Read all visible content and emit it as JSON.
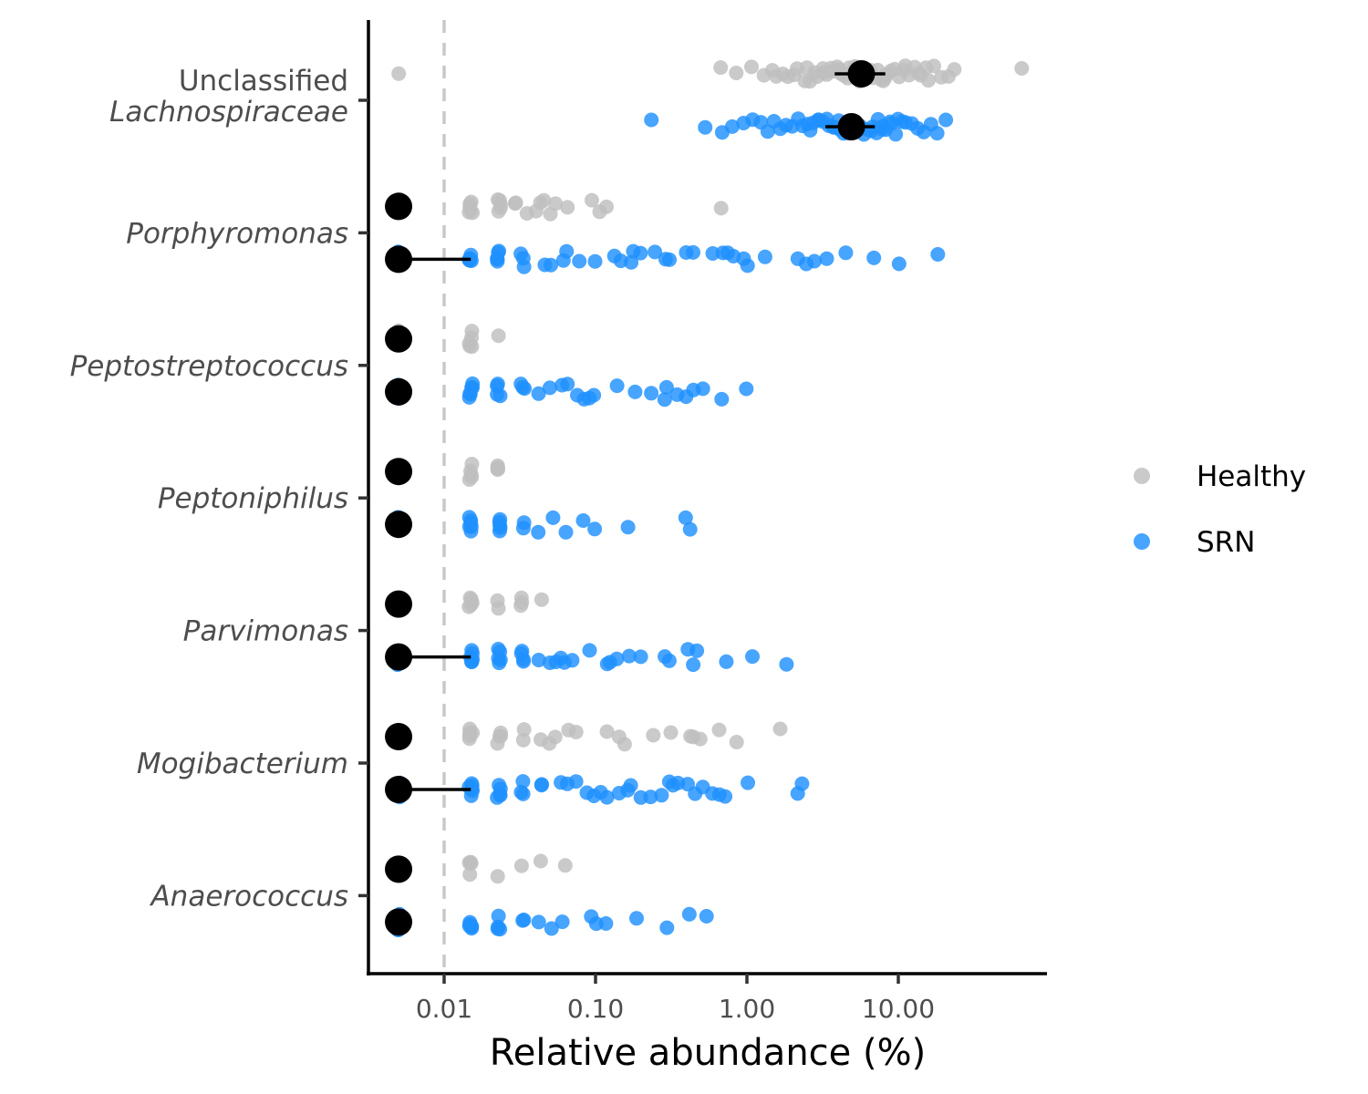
{
  "chart_data": {
    "type": "scatter",
    "title": "",
    "xlabel": "Relative abundance (%)",
    "ylabel": "",
    "x_scale": "log10",
    "xlim": [
      0.003,
      90
    ],
    "x_ticks": [
      {
        "value": 0.01,
        "label": "0.01"
      },
      {
        "value": 0.1,
        "label": "0.10"
      },
      {
        "value": 1,
        "label": "1.00"
      },
      {
        "value": 10,
        "label": "10.00"
      }
    ],
    "detection_limit_line": 0.01,
    "grid": false,
    "legend_position": "right",
    "legend": [
      {
        "group": "Healthy",
        "label": "Healthy",
        "color": "#bebebe"
      },
      {
        "group": "SRN",
        "label": "SRN",
        "color": "#1e90ff"
      }
    ],
    "summary_color": "#000000",
    "categories": [
      {
        "key": "lachno",
        "lines": [
          "Unclassified",
          "Lachnospiraceae"
        ],
        "italic": [
          false,
          true
        ],
        "groups": {
          "Healthy": {
            "median": 5.7,
            "range": [
              3.8,
              8.2
            ],
            "points": [
              0.005,
              0.68,
              0.85,
              1.05,
              1.3,
              1.45,
              1.6,
              1.75,
              1.9,
              2.05,
              2.2,
              2.35,
              2.5,
              2.65,
              2.8,
              2.95,
              3.1,
              3.25,
              3.4,
              3.55,
              3.7,
              3.85,
              4.0,
              4.2,
              4.4,
              4.6,
              4.8,
              5.0,
              5.2,
              5.4,
              5.6,
              5.8,
              6.0,
              6.3,
              6.6,
              6.9,
              7.2,
              7.5,
              7.8,
              8.1,
              8.5,
              9.0,
              9.5,
              10.0,
              10.6,
              11.2,
              11.8,
              12.5,
              13.3,
              14.1,
              15.0,
              16.0,
              17.5,
              19.0,
              21.0,
              23.0,
              67.0
            ]
          },
          "SRN": {
            "median": 4.9,
            "range": [
              3.3,
              7.0
            ],
            "points": [
              0.24,
              0.52,
              0.7,
              0.82,
              0.95,
              1.1,
              1.25,
              1.4,
              1.55,
              1.7,
              1.85,
              2.0,
              2.15,
              2.3,
              2.45,
              2.6,
              2.75,
              2.9,
              3.05,
              3.2,
              3.35,
              3.5,
              3.65,
              3.8,
              3.95,
              4.1,
              4.3,
              4.5,
              4.7,
              4.9,
              5.1,
              5.3,
              5.5,
              5.7,
              5.9,
              6.2,
              6.5,
              6.8,
              7.1,
              7.4,
              7.7,
              8.0,
              8.4,
              8.8,
              9.2,
              9.6,
              10.0,
              10.5,
              11.0,
              12.0,
              13.5,
              15.0,
              16.5,
              18.0,
              21.0
            ]
          }
        }
      },
      {
        "key": "porphyromonas",
        "lines": [
          "Porphyromonas"
        ],
        "italic": [
          true
        ],
        "groups": {
          "Healthy": {
            "median": 0.005,
            "range": [
              0.005,
              0.005
            ],
            "points": [
              0.005,
              0.005,
              0.005,
              0.005,
              0.005,
              0.005,
              0.005,
              0.005,
              0.005,
              0.015,
              0.015,
              0.015,
              0.015,
              0.015,
              0.015,
              0.023,
              0.023,
              0.023,
              0.023,
              0.023,
              0.03,
              0.03,
              0.035,
              0.04,
              0.043,
              0.045,
              0.05,
              0.055,
              0.065,
              0.095,
              0.105,
              0.118,
              0.68
            ]
          },
          "SRN": {
            "median": 0.005,
            "range": [
              0.005,
              0.015
            ],
            "points": [
              0.005,
              0.005,
              0.005,
              0.005,
              0.005,
              0.005,
              0.005,
              0.005,
              0.005,
              0.005,
              0.015,
              0.015,
              0.015,
              0.015,
              0.015,
              0.015,
              0.023,
              0.023,
              0.023,
              0.023,
              0.023,
              0.033,
              0.033,
              0.033,
              0.045,
              0.05,
              0.06,
              0.065,
              0.08,
              0.1,
              0.13,
              0.15,
              0.17,
              0.18,
              0.2,
              0.25,
              0.29,
              0.3,
              0.4,
              0.45,
              0.6,
              0.7,
              0.75,
              0.8,
              0.95,
              1.0,
              1.3,
              2.2,
              2.5,
              2.8,
              3.3,
              4.5,
              7.0,
              10.0,
              18.0
            ]
          }
        }
      },
      {
        "key": "peptostreptococcus",
        "lines": [
          "Peptostreptococcus"
        ],
        "italic": [
          true
        ],
        "groups": {
          "Healthy": {
            "median": 0.005,
            "range": [
              0.005,
              0.005
            ],
            "points": [
              0.005,
              0.005,
              0.005,
              0.005,
              0.005,
              0.005,
              0.005,
              0.015,
              0.015,
              0.015,
              0.015,
              0.015,
              0.023
            ]
          },
          "SRN": {
            "median": 0.005,
            "range": [
              0.005,
              0.005
            ],
            "points": [
              0.005,
              0.005,
              0.005,
              0.005,
              0.005,
              0.005,
              0.005,
              0.005,
              0.005,
              0.015,
              0.015,
              0.015,
              0.015,
              0.015,
              0.015,
              0.023,
              0.023,
              0.023,
              0.023,
              0.033,
              0.033,
              0.033,
              0.043,
              0.05,
              0.06,
              0.065,
              0.075,
              0.085,
              0.09,
              0.1,
              0.14,
              0.18,
              0.23,
              0.28,
              0.3,
              0.35,
              0.4,
              0.45,
              0.5,
              0.7,
              1.0
            ]
          }
        }
      },
      {
        "key": "peptoniphilus",
        "lines": [
          "Peptoniphilus"
        ],
        "italic": [
          true
        ],
        "groups": {
          "Healthy": {
            "median": 0.005,
            "range": [
              0.005,
              0.005
            ],
            "points": [
              0.005,
              0.005,
              0.005,
              0.005,
              0.005,
              0.005,
              0.015,
              0.015,
              0.015,
              0.015,
              0.015,
              0.023,
              0.023,
              0.023,
              0.023
            ]
          },
          "SRN": {
            "median": 0.005,
            "range": [
              0.005,
              0.005
            ],
            "points": [
              0.005,
              0.005,
              0.005,
              0.005,
              0.005,
              0.005,
              0.005,
              0.005,
              0.015,
              0.015,
              0.015,
              0.015,
              0.015,
              0.015,
              0.023,
              0.023,
              0.023,
              0.023,
              0.023,
              0.033,
              0.033,
              0.043,
              0.052,
              0.062,
              0.085,
              0.1,
              0.16,
              0.4,
              0.43
            ]
          }
        }
      },
      {
        "key": "parvimonas",
        "lines": [
          "Parvimonas"
        ],
        "italic": [
          true
        ],
        "groups": {
          "Healthy": {
            "median": 0.005,
            "range": [
              0.005,
              0.005
            ],
            "points": [
              0.005,
              0.005,
              0.005,
              0.005,
              0.005,
              0.005,
              0.015,
              0.015,
              0.015,
              0.015,
              0.015,
              0.023,
              0.023,
              0.033,
              0.033,
              0.033,
              0.043
            ]
          },
          "SRN": {
            "median": 0.005,
            "range": [
              0.005,
              0.015
            ],
            "points": [
              0.005,
              0.005,
              0.005,
              0.005,
              0.005,
              0.005,
              0.005,
              0.005,
              0.005,
              0.015,
              0.015,
              0.015,
              0.015,
              0.015,
              0.015,
              0.023,
              0.023,
              0.023,
              0.023,
              0.023,
              0.033,
              0.033,
              0.033,
              0.033,
              0.043,
              0.05,
              0.055,
              0.06,
              0.063,
              0.07,
              0.09,
              0.12,
              0.125,
              0.14,
              0.17,
              0.2,
              0.28,
              0.3,
              0.4,
              0.45,
              0.48,
              0.75,
              1.1,
              1.8
            ]
          }
        }
      },
      {
        "key": "mogibacterium",
        "lines": [
          "Mogibacterium"
        ],
        "italic": [
          true
        ],
        "groups": {
          "Healthy": {
            "median": 0.005,
            "range": [
              0.005,
              0.005
            ],
            "points": [
              0.005,
              0.005,
              0.005,
              0.005,
              0.005,
              0.005,
              0.005,
              0.015,
              0.015,
              0.015,
              0.015,
              0.015,
              0.015,
              0.023,
              0.023,
              0.023,
              0.023,
              0.033,
              0.033,
              0.043,
              0.05,
              0.055,
              0.065,
              0.075,
              0.12,
              0.14,
              0.16,
              0.24,
              0.32,
              0.42,
              0.45,
              0.48,
              0.65,
              0.85,
              1.65
            ]
          },
          "SRN": {
            "median": 0.005,
            "range": [
              0.005,
              0.015
            ],
            "points": [
              0.005,
              0.005,
              0.005,
              0.005,
              0.005,
              0.005,
              0.005,
              0.005,
              0.005,
              0.005,
              0.015,
              0.015,
              0.015,
              0.015,
              0.015,
              0.015,
              0.023,
              0.023,
              0.023,
              0.023,
              0.023,
              0.033,
              0.033,
              0.033,
              0.043,
              0.043,
              0.06,
              0.065,
              0.075,
              0.09,
              0.1,
              0.11,
              0.12,
              0.14,
              0.16,
              0.17,
              0.2,
              0.23,
              0.28,
              0.3,
              0.32,
              0.36,
              0.4,
              0.45,
              0.5,
              0.6,
              0.65,
              0.7,
              1.0,
              2.2,
              2.3
            ]
          }
        }
      },
      {
        "key": "anaerococcus",
        "lines": [
          "Anaerococcus"
        ],
        "italic": [
          true
        ],
        "groups": {
          "Healthy": {
            "median": 0.005,
            "range": [
              0.005,
              0.005
            ],
            "points": [
              0.005,
              0.005,
              0.005,
              0.005,
              0.005,
              0.005,
              0.015,
              0.015,
              0.015,
              0.015,
              0.023,
              0.033,
              0.043,
              0.062
            ]
          },
          "SRN": {
            "median": 0.005,
            "range": [
              0.005,
              0.005
            ],
            "points": [
              0.005,
              0.005,
              0.005,
              0.005,
              0.005,
              0.005,
              0.005,
              0.015,
              0.015,
              0.015,
              0.015,
              0.015,
              0.015,
              0.023,
              0.023,
              0.023,
              0.023,
              0.033,
              0.033,
              0.043,
              0.052,
              0.062,
              0.092,
              0.1,
              0.12,
              0.19,
              0.3,
              0.42,
              0.54
            ]
          }
        }
      }
    ]
  }
}
